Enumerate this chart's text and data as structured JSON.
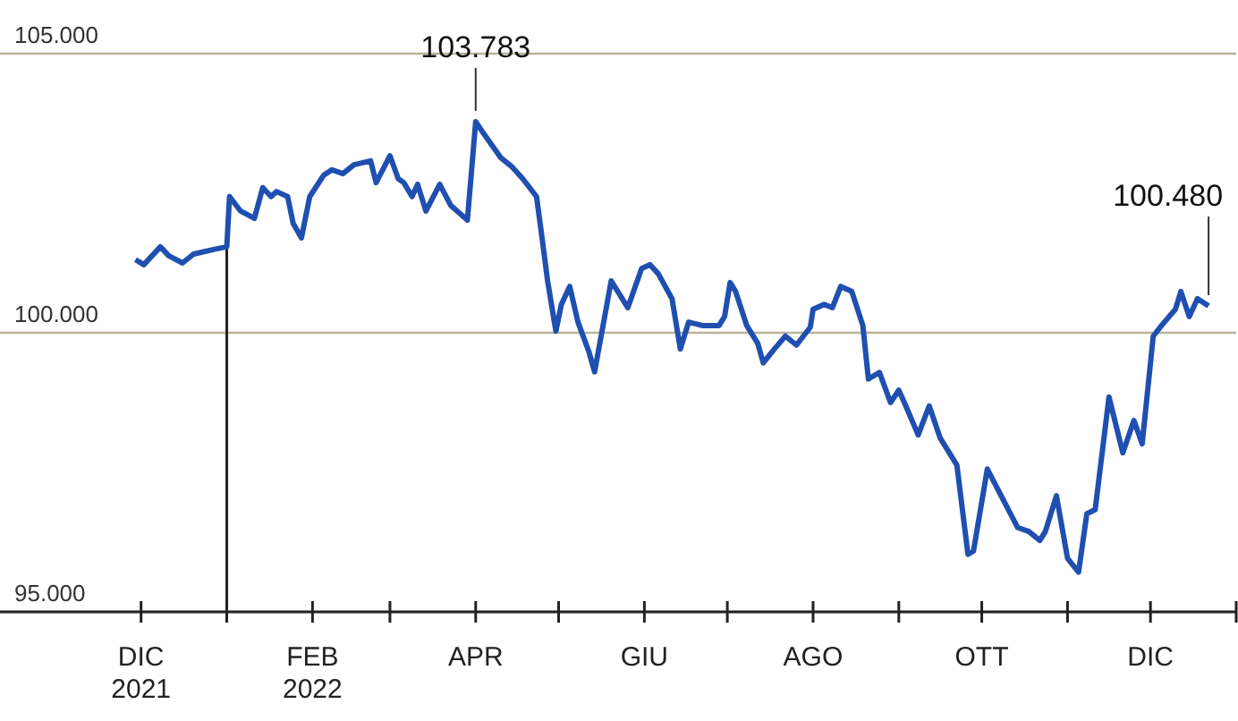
{
  "chart_data": {
    "type": "line",
    "x": [
      "2021-11-29",
      "2021-12-02",
      "2021-12-08",
      "2021-12-11",
      "2021-12-16",
      "2021-12-20",
      "2021-12-28",
      "2022-01-01",
      "2022-01-02",
      "2022-01-06",
      "2022-01-11",
      "2022-01-14",
      "2022-01-17",
      "2022-01-19",
      "2022-01-23",
      "2022-01-25",
      "2022-01-28",
      "2022-01-31",
      "2022-02-05",
      "2022-02-08",
      "2022-02-12",
      "2022-02-16",
      "2022-02-22",
      "2022-02-24",
      "2022-03-01",
      "2022-03-04",
      "2022-03-06",
      "2022-03-09",
      "2022-03-11",
      "2022-03-14",
      "2022-03-19",
      "2022-03-23",
      "2022-03-29",
      "2022-04-01",
      "2022-04-04",
      "2022-04-10",
      "2022-04-14",
      "2022-04-18",
      "2022-04-23",
      "2022-04-25",
      "2022-04-27",
      "2022-04-30",
      "2022-05-02",
      "2022-05-05",
      "2022-05-08",
      "2022-05-12",
      "2022-05-14",
      "2022-05-20",
      "2022-05-26",
      "2022-05-31",
      "2022-06-03",
      "2022-06-06",
      "2022-06-11",
      "2022-06-14",
      "2022-06-17",
      "2022-06-22",
      "2022-06-28",
      "2022-06-30",
      "2022-07-02",
      "2022-07-04",
      "2022-07-08",
      "2022-07-12",
      "2022-07-14",
      "2022-07-18",
      "2022-07-22",
      "2022-07-26",
      "2022-07-31",
      "2022-08-01",
      "2022-08-05",
      "2022-08-08",
      "2022-08-11",
      "2022-08-15",
      "2022-08-19",
      "2022-08-21",
      "2022-08-25",
      "2022-08-29",
      "2022-09-01",
      "2022-09-03",
      "2022-09-08",
      "2022-09-12",
      "2022-09-16",
      "2022-09-22",
      "2022-09-26",
      "2022-09-28",
      "2022-10-03",
      "2022-10-10",
      "2022-10-14",
      "2022-10-18",
      "2022-10-22",
      "2022-10-24",
      "2022-10-28",
      "2022-11-01",
      "2022-11-05",
      "2022-11-08",
      "2022-11-11",
      "2022-11-16",
      "2022-11-21",
      "2022-11-25",
      "2022-11-28",
      "2022-12-02",
      "2022-12-05",
      "2022-12-10",
      "2022-12-12",
      "2022-12-15",
      "2022-12-18",
      "2022-12-22"
    ],
    "series": [
      {
        "color": "#1f4fb0",
        "values": [
          101310,
          101220,
          101540,
          101380,
          101250,
          101410,
          101500,
          101540,
          102440,
          102180,
          102050,
          102600,
          102440,
          102530,
          102440,
          101960,
          101700,
          102440,
          102820,
          102920,
          102850,
          103010,
          103080,
          102690,
          103170,
          102760,
          102690,
          102440,
          102660,
          102180,
          102660,
          102280,
          102020,
          103783,
          103560,
          103140,
          102980,
          102760,
          102440,
          101700,
          100930,
          100030,
          100510,
          100830,
          100190,
          99650,
          99300,
          100930,
          100450,
          101150,
          101220,
          101060,
          100610,
          99710,
          100190,
          100130,
          100130,
          100290,
          100900,
          100740,
          100130,
          99810,
          99460,
          99710,
          99940,
          99780,
          100100,
          100420,
          100510,
          100450,
          100830,
          100740,
          100130,
          99170,
          99290,
          98750,
          98970,
          98750,
          98170,
          98690,
          98110,
          97630,
          96030,
          96090,
          97560,
          96890,
          96510,
          96440,
          96280,
          96440,
          97080,
          95960,
          95710,
          96760,
          96830,
          98850,
          97850,
          98430,
          98010,
          99940,
          100130,
          100420,
          100740,
          100290,
          100610,
          100480
        ]
      }
    ],
    "xlim": [
      "2021-10-11",
      "2023-01-01"
    ],
    "xticks": [
      {
        "value": "2021-12-01",
        "label": "DIC 2021"
      },
      {
        "value": "2022-01-01",
        "label": null
      },
      {
        "value": "2022-02-01",
        "label": "FEB 2022"
      },
      {
        "value": "2022-03-01",
        "label": null
      },
      {
        "value": "2022-04-01",
        "label": "APR"
      },
      {
        "value": "2022-05-01",
        "label": null
      },
      {
        "value": "2022-06-01",
        "label": "GIU"
      },
      {
        "value": "2022-07-01",
        "label": null
      },
      {
        "value": "2022-08-01",
        "label": "AGO"
      },
      {
        "value": "2022-09-01",
        "label": null
      },
      {
        "value": "2022-10-01",
        "label": "OTT"
      },
      {
        "value": "2022-11-01",
        "label": null
      },
      {
        "value": "2022-12-01",
        "label": "DIC"
      },
      {
        "value": "2023-01-01",
        "label": null
      }
    ],
    "ylim": [
      95000,
      105000
    ],
    "yticks": [
      {
        "value": 95000,
        "label": "95.000"
      },
      {
        "value": 100000,
        "label": "100.000"
      },
      {
        "value": 105000,
        "label": "105.000"
      }
    ],
    "grid": "y",
    "marker": "none",
    "line_style": "solid",
    "ref_lines": [
      {
        "axis": "x",
        "value": "2022-01-01",
        "color": "#222222"
      }
    ],
    "annotations": [
      {
        "text": "103.783",
        "x": "2022-04-01",
        "y": 103783
      },
      {
        "text": "100.480",
        "x": "2022-12-22",
        "y": 100480
      }
    ]
  }
}
